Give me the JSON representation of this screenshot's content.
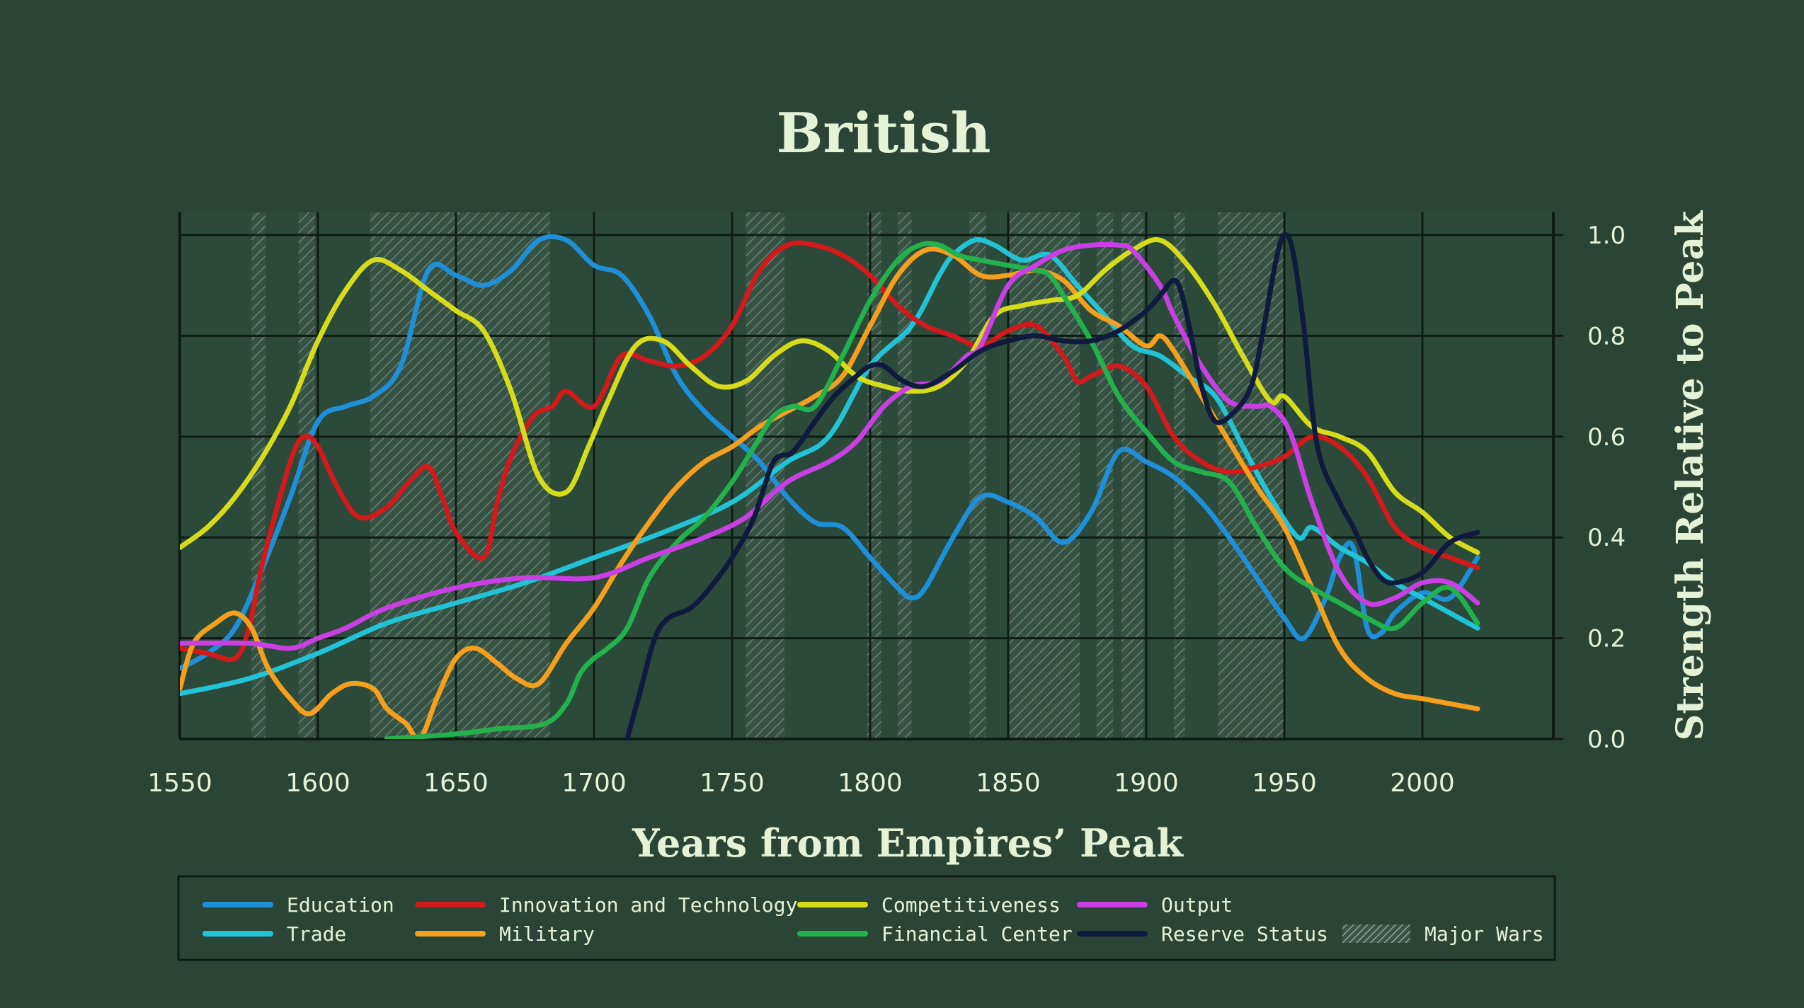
{
  "colors": {
    "background": "#2a4536",
    "plot_background": "#2b4a39",
    "grid": "#0f1c15",
    "text": "#e4f2d6",
    "war_hatch": "#8a9c8f"
  },
  "chart_data": {
    "type": "line",
    "title": "British",
    "xlabel": "Years from Empires’ Peak",
    "ylabel": "Strength Relative to Peak",
    "xlim": [
      1550,
      2025
    ],
    "ylim": [
      0,
      1.0
    ],
    "x_ticks": [
      "1550",
      "1600",
      "1650",
      "1700",
      "1750",
      "1800",
      "1850",
      "1900",
      "1950",
      "2000"
    ],
    "y_ticks": [
      "0.0",
      "0.2",
      "0.4",
      "0.6",
      "0.8",
      "1.0"
    ],
    "grid": true,
    "legend_position": "bottom",
    "legend_wars_label": "Major Wars",
    "major_wars": [
      [
        1576,
        1581
      ],
      [
        1593,
        1599
      ],
      [
        1619,
        1684
      ],
      [
        1755,
        1769
      ],
      [
        1799,
        1804
      ],
      [
        1810,
        1815
      ],
      [
        1836,
        1842
      ],
      [
        1850,
        1876
      ],
      [
        1882,
        1888
      ],
      [
        1891,
        1899
      ],
      [
        1910,
        1914
      ],
      [
        1926,
        1950
      ]
    ],
    "series": [
      {
        "name": "Education",
        "color": "#1f8fd8",
        "x": [
          1550,
          1560,
          1570,
          1580,
          1590,
          1600,
          1610,
          1620,
          1630,
          1640,
          1650,
          1660,
          1670,
          1680,
          1690,
          1700,
          1710,
          1720,
          1730,
          1740,
          1750,
          1760,
          1770,
          1780,
          1790,
          1800,
          1810,
          1815,
          1820,
          1830,
          1840,
          1850,
          1860,
          1870,
          1880,
          1890,
          1900,
          1910,
          1920,
          1930,
          1940,
          1950,
          1957,
          1965,
          1970,
          1975,
          1980,
          1985,
          1990,
          2000,
          2010,
          2020
        ],
        "y": [
          0.14,
          0.17,
          0.22,
          0.34,
          0.48,
          0.63,
          0.66,
          0.68,
          0.74,
          0.93,
          0.92,
          0.9,
          0.93,
          0.99,
          0.99,
          0.94,
          0.92,
          0.84,
          0.72,
          0.65,
          0.6,
          0.55,
          0.48,
          0.43,
          0.42,
          0.36,
          0.3,
          0.28,
          0.3,
          0.4,
          0.48,
          0.47,
          0.44,
          0.39,
          0.45,
          0.57,
          0.55,
          0.52,
          0.47,
          0.4,
          0.32,
          0.24,
          0.2,
          0.28,
          0.36,
          0.38,
          0.22,
          0.21,
          0.25,
          0.29,
          0.28,
          0.36
        ]
      },
      {
        "name": "Trade",
        "color": "#22c3d6",
        "x": [
          1550,
          1575,
          1600,
          1625,
          1650,
          1675,
          1700,
          1725,
          1750,
          1770,
          1785,
          1800,
          1815,
          1825,
          1830,
          1838,
          1845,
          1855,
          1865,
          1875,
          1885,
          1895,
          1905,
          1915,
          1925,
          1935,
          1945,
          1955,
          1960,
          1970,
          1980,
          1990,
          2000,
          2010,
          2020
        ],
        "y": [
          0.09,
          0.12,
          0.17,
          0.23,
          0.27,
          0.31,
          0.36,
          0.41,
          0.47,
          0.55,
          0.6,
          0.74,
          0.82,
          0.92,
          0.96,
          0.99,
          0.98,
          0.95,
          0.96,
          0.9,
          0.84,
          0.78,
          0.76,
          0.72,
          0.68,
          0.58,
          0.48,
          0.4,
          0.42,
          0.38,
          0.35,
          0.31,
          0.28,
          0.25,
          0.22
        ]
      },
      {
        "name": "Innovation and Technology",
        "color": "#d2191c",
        "x": [
          1550,
          1560,
          1570,
          1575,
          1580,
          1590,
          1595,
          1600,
          1607,
          1615,
          1625,
          1633,
          1640,
          1645,
          1650,
          1660,
          1665,
          1670,
          1678,
          1685,
          1690,
          1700,
          1710,
          1720,
          1730,
          1740,
          1750,
          1760,
          1770,
          1780,
          1790,
          1800,
          1810,
          1820,
          1830,
          1840,
          1850,
          1860,
          1870,
          1875,
          1880,
          1890,
          1900,
          1910,
          1920,
          1930,
          1940,
          1950,
          1960,
          1970,
          1980,
          1990,
          2000,
          2010,
          2020
        ],
        "y": [
          0.18,
          0.17,
          0.16,
          0.22,
          0.35,
          0.55,
          0.6,
          0.58,
          0.5,
          0.44,
          0.46,
          0.51,
          0.54,
          0.48,
          0.41,
          0.36,
          0.47,
          0.56,
          0.64,
          0.66,
          0.69,
          0.66,
          0.76,
          0.75,
          0.74,
          0.76,
          0.82,
          0.93,
          0.98,
          0.98,
          0.96,
          0.92,
          0.86,
          0.82,
          0.8,
          0.78,
          0.81,
          0.82,
          0.76,
          0.71,
          0.72,
          0.74,
          0.7,
          0.6,
          0.55,
          0.53,
          0.54,
          0.56,
          0.6,
          0.58,
          0.52,
          0.42,
          0.38,
          0.36,
          0.34
        ]
      },
      {
        "name": "Military",
        "color": "#f59f1c",
        "x": [
          1550,
          1555,
          1563,
          1570,
          1576,
          1582,
          1590,
          1597,
          1605,
          1612,
          1620,
          1625,
          1632,
          1637,
          1643,
          1650,
          1657,
          1665,
          1672,
          1680,
          1690,
          1700,
          1710,
          1720,
          1730,
          1740,
          1750,
          1760,
          1770,
          1780,
          1790,
          1800,
          1810,
          1820,
          1830,
          1840,
          1850,
          1860,
          1870,
          1880,
          1890,
          1900,
          1905,
          1910,
          1920,
          1930,
          1940,
          1950,
          1960,
          1970,
          1980,
          1990,
          2000,
          2010,
          2020
        ],
        "y": [
          0.1,
          0.19,
          0.23,
          0.25,
          0.22,
          0.14,
          0.08,
          0.05,
          0.09,
          0.11,
          0.1,
          0.06,
          0.03,
          0.0,
          0.08,
          0.16,
          0.18,
          0.15,
          0.12,
          0.11,
          0.19,
          0.26,
          0.35,
          0.43,
          0.5,
          0.55,
          0.58,
          0.62,
          0.65,
          0.68,
          0.72,
          0.82,
          0.92,
          0.97,
          0.96,
          0.92,
          0.92,
          0.93,
          0.91,
          0.85,
          0.82,
          0.78,
          0.8,
          0.77,
          0.68,
          0.59,
          0.5,
          0.42,
          0.3,
          0.18,
          0.12,
          0.09,
          0.08,
          0.07,
          0.06
        ]
      },
      {
        "name": "Competitiveness",
        "color": "#d7dc1a",
        "x": [
          1550,
          1560,
          1570,
          1580,
          1590,
          1600,
          1610,
          1620,
          1630,
          1640,
          1650,
          1660,
          1670,
          1680,
          1690,
          1698,
          1705,
          1715,
          1725,
          1735,
          1745,
          1755,
          1765,
          1775,
          1785,
          1795,
          1805,
          1815,
          1825,
          1835,
          1845,
          1855,
          1865,
          1875,
          1885,
          1895,
          1905,
          1915,
          1925,
          1935,
          1945,
          1950,
          1960,
          1970,
          1980,
          1990,
          2000,
          2010,
          2020
        ],
        "y": [
          0.38,
          0.42,
          0.48,
          0.56,
          0.66,
          0.79,
          0.89,
          0.95,
          0.93,
          0.89,
          0.85,
          0.81,
          0.69,
          0.52,
          0.49,
          0.58,
          0.67,
          0.78,
          0.79,
          0.74,
          0.7,
          0.71,
          0.76,
          0.79,
          0.77,
          0.72,
          0.7,
          0.69,
          0.7,
          0.75,
          0.84,
          0.86,
          0.87,
          0.88,
          0.93,
          0.97,
          0.99,
          0.94,
          0.86,
          0.76,
          0.67,
          0.68,
          0.62,
          0.6,
          0.57,
          0.49,
          0.45,
          0.4,
          0.37
        ]
      },
      {
        "name": "Financial Center",
        "color": "#22b14c",
        "x": [
          1625,
          1650,
          1665,
          1682,
          1690,
          1695,
          1700,
          1705,
          1712,
          1720,
          1730,
          1740,
          1750,
          1758,
          1765,
          1772,
          1780,
          1790,
          1800,
          1810,
          1818,
          1825,
          1832,
          1840,
          1850,
          1860,
          1865,
          1870,
          1880,
          1890,
          1900,
          1910,
          1920,
          1930,
          1940,
          1950,
          1960,
          1970,
          1980,
          1990,
          2000,
          2010,
          2020
        ],
        "y": [
          0.0,
          0.01,
          0.02,
          0.03,
          0.07,
          0.13,
          0.16,
          0.18,
          0.22,
          0.32,
          0.39,
          0.44,
          0.51,
          0.58,
          0.64,
          0.66,
          0.66,
          0.76,
          0.87,
          0.95,
          0.98,
          0.98,
          0.96,
          0.95,
          0.94,
          0.93,
          0.92,
          0.88,
          0.79,
          0.68,
          0.61,
          0.55,
          0.53,
          0.51,
          0.42,
          0.34,
          0.3,
          0.27,
          0.24,
          0.22,
          0.27,
          0.3,
          0.23
        ]
      },
      {
        "name": "Output",
        "color": "#c93fe3",
        "x": [
          1550,
          1575,
          1590,
          1600,
          1610,
          1625,
          1650,
          1675,
          1700,
          1720,
          1740,
          1755,
          1770,
          1785,
          1795,
          1805,
          1815,
          1825,
          1835,
          1840,
          1850,
          1860,
          1870,
          1880,
          1890,
          1895,
          1905,
          1910,
          1920,
          1930,
          1940,
          1945,
          1952,
          1960,
          1970,
          1980,
          1990,
          2000,
          2010,
          2020
        ],
        "y": [
          0.19,
          0.19,
          0.18,
          0.2,
          0.22,
          0.26,
          0.3,
          0.32,
          0.32,
          0.36,
          0.4,
          0.44,
          0.51,
          0.55,
          0.59,
          0.66,
          0.7,
          0.71,
          0.76,
          0.78,
          0.9,
          0.94,
          0.97,
          0.98,
          0.98,
          0.97,
          0.9,
          0.84,
          0.74,
          0.67,
          0.66,
          0.66,
          0.61,
          0.47,
          0.33,
          0.27,
          0.28,
          0.31,
          0.31,
          0.27
        ]
      },
      {
        "name": "Reserve Status",
        "color": "#0f1b3c",
        "x": [
          1712,
          1717,
          1722,
          1727,
          1735,
          1742,
          1750,
          1758,
          1765,
          1772,
          1780,
          1787,
          1795,
          1800,
          1805,
          1812,
          1820,
          1830,
          1840,
          1850,
          1860,
          1870,
          1880,
          1890,
          1900,
          1905,
          1910,
          1913,
          1917,
          1920,
          1925,
          1932,
          1938,
          1942,
          1947,
          1950,
          1953,
          1957,
          1962,
          1970,
          1975,
          1980,
          1985,
          1990,
          2000,
          2010,
          2020
        ],
        "y": [
          0.0,
          0.1,
          0.2,
          0.24,
          0.26,
          0.3,
          0.36,
          0.44,
          0.55,
          0.57,
          0.63,
          0.68,
          0.72,
          0.74,
          0.74,
          0.71,
          0.7,
          0.73,
          0.77,
          0.79,
          0.8,
          0.79,
          0.79,
          0.81,
          0.85,
          0.88,
          0.91,
          0.88,
          0.78,
          0.7,
          0.63,
          0.65,
          0.7,
          0.8,
          0.95,
          1.0,
          0.97,
          0.82,
          0.58,
          0.47,
          0.42,
          0.36,
          0.32,
          0.31,
          0.33,
          0.39,
          0.41
        ]
      }
    ]
  }
}
